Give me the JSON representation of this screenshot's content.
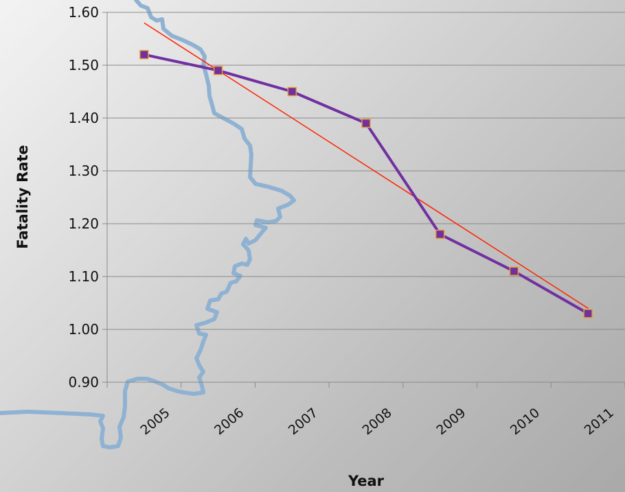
{
  "chart_data": {
    "type": "line",
    "title": "",
    "xlabel": "Year",
    "ylabel": "Fatality Rate",
    "categories": [
      "2005",
      "2006",
      "2007",
      "2008",
      "2009",
      "2010",
      "2011"
    ],
    "series": [
      {
        "values": [
          1.52,
          1.49,
          1.45,
          1.39,
          1.18,
          1.11,
          1.03
        ],
        "color": "#7030a0",
        "marker": "square",
        "marker_fill": "#7030a0",
        "marker_edge": "#e8a030"
      }
    ],
    "trendline": {
      "type": "linear",
      "color": "#ff2200",
      "start": 1.58,
      "end": 1.04
    },
    "y_ticks": [
      "0.90",
      "1.00",
      "1.10",
      "1.20",
      "1.30",
      "1.40",
      "1.50",
      "1.60"
    ],
    "ylim": [
      0.9,
      1.6
    ],
    "grid": true,
    "legend": "none",
    "background_decoration": "map-outline",
    "decoration_color": "#8fb2d3"
  }
}
